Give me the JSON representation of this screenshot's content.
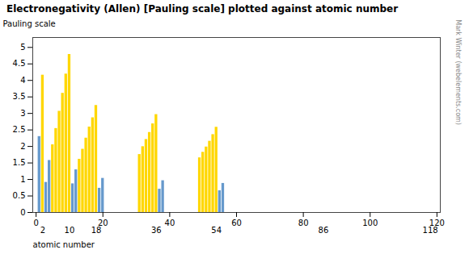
{
  "chart_data": {
    "type": "bar",
    "title": "Electronegativity (Allen) [Pauling scale] plotted against atomic number",
    "ylabel": "Pauling scale",
    "xlabel": "atomic number",
    "annotations": [
      "© Mark Winter (webelements.com)"
    ],
    "x": [
      1,
      2,
      3,
      4,
      5,
      6,
      7,
      8,
      9,
      10,
      11,
      12,
      13,
      14,
      15,
      16,
      17,
      18,
      19,
      20,
      31,
      32,
      33,
      34,
      35,
      36,
      37,
      38,
      49,
      50,
      51,
      52,
      53,
      54,
      55,
      56
    ],
    "values": [
      2.3,
      4.16,
      0.912,
      1.576,
      2.051,
      2.544,
      3.066,
      3.61,
      4.193,
      4.787,
      0.869,
      1.293,
      1.613,
      1.916,
      2.253,
      2.589,
      2.869,
      3.242,
      0.734,
      1.034,
      1.756,
      1.994,
      2.211,
      2.424,
      2.685,
      2.966,
      0.706,
      0.963,
      1.656,
      1.824,
      1.984,
      2.158,
      2.359,
      2.582,
      0.659,
      0.881
    ],
    "colors": [
      "#6699CC",
      "#FFD700",
      "#6699CC",
      "#6699CC",
      "#FFD700",
      "#FFD700",
      "#FFD700",
      "#FFD700",
      "#FFD700",
      "#FFD700",
      "#6699CC",
      "#6699CC",
      "#FFD700",
      "#FFD700",
      "#FFD700",
      "#FFD700",
      "#FFD700",
      "#FFD700",
      "#6699CC",
      "#6699CC",
      "#FFD700",
      "#FFD700",
      "#FFD700",
      "#FFD700",
      "#FFD700",
      "#FFD700",
      "#6699CC",
      "#6699CC",
      "#FFD700",
      "#FFD700",
      "#FFD700",
      "#FFD700",
      "#FFD700",
      "#FFD700",
      "#6699CC",
      "#6699CC"
    ],
    "xlim": [
      -1,
      121
    ],
    "xticks": [
      0,
      20,
      40,
      60,
      80,
      100,
      120
    ],
    "x2ticks": [
      2,
      10,
      18,
      36,
      54,
      86,
      118
    ],
    "ylim": [
      0,
      5.3
    ],
    "yticks": [
      0,
      0.5,
      1,
      1.5,
      2,
      2.5,
      3,
      3.5,
      4,
      4.5,
      5
    ],
    "grid": false
  }
}
